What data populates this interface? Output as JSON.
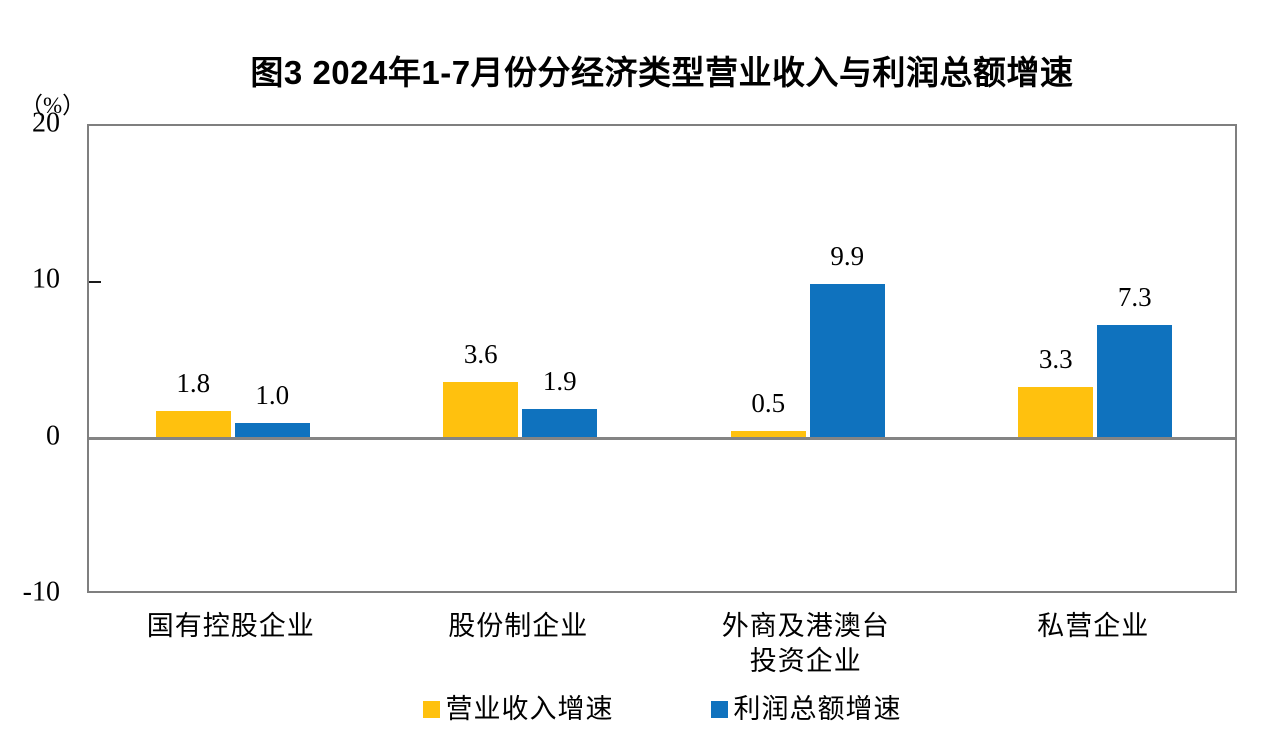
{
  "chart_data": {
    "type": "bar",
    "title": "图3  2024年1-7月份分经济类型营业收入与利润总额增速",
    "unit_label": "（%）",
    "categories": [
      "国有控股企业",
      "股份制企业",
      "外商及港澳台\n投资企业",
      "私营企业"
    ],
    "series": [
      {
        "name": "营业收入增速",
        "color": "#FFC10E",
        "values": [
          1.8,
          3.6,
          0.5,
          3.3
        ]
      },
      {
        "name": "利润总额增速",
        "color": "#0F72BE",
        "values": [
          1.0,
          1.9,
          9.9,
          7.3
        ]
      }
    ],
    "ylim": [
      -10,
      20
    ],
    "yticks": [
      20,
      10,
      0,
      -10
    ],
    "grid": false,
    "legend_position": "bottom",
    "value_labels": true,
    "axis_color": "#7f7f7f"
  }
}
